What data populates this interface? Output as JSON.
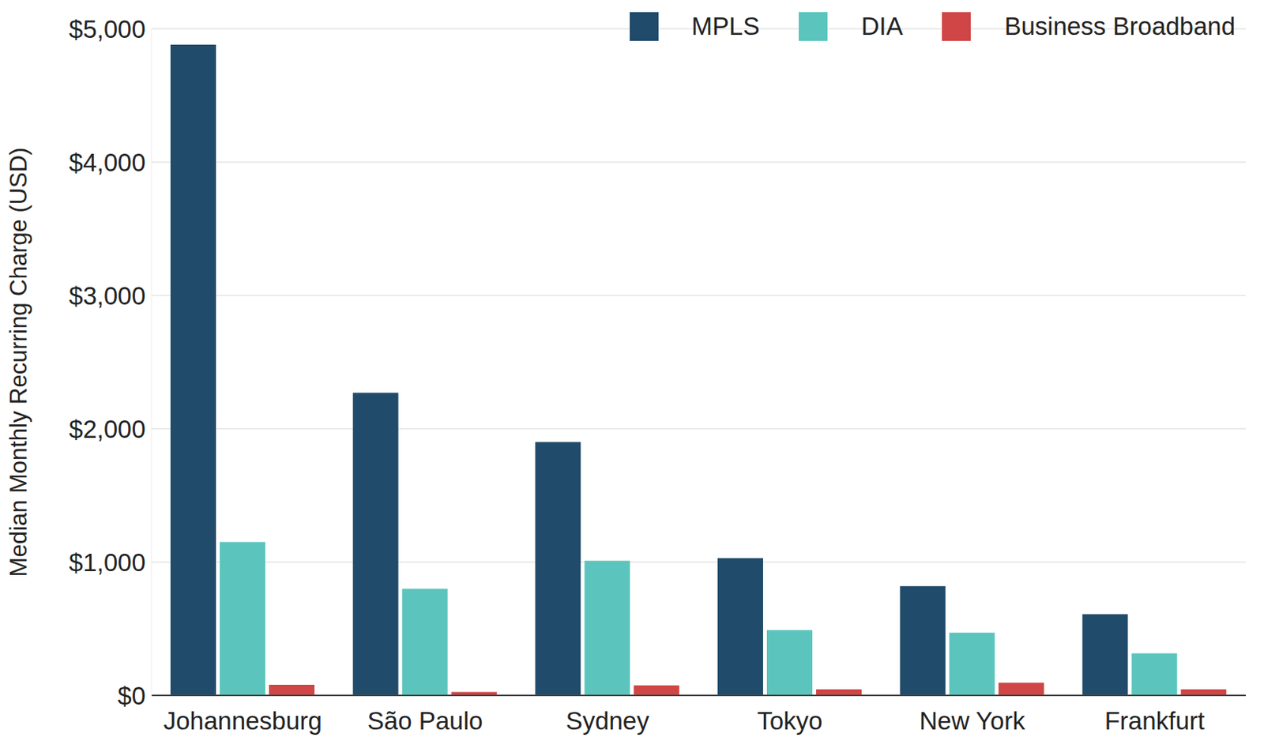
{
  "chart_data": {
    "type": "bar",
    "y_label": "Median Monthly Recurring Charge (USD)",
    "categories": [
      "Johannesburg",
      "São Paulo",
      "Sydney",
      "Tokyo",
      "New York",
      "Frankfurt"
    ],
    "series": [
      {
        "name": "MPLS",
        "color": "#214b6a",
        "values": [
          4880,
          2270,
          1900,
          1030,
          820,
          610
        ]
      },
      {
        "name": "DIA",
        "color": "#5bc5bd",
        "values": [
          1150,
          800,
          1010,
          490,
          470,
          315
        ]
      },
      {
        "name": "Business Broadband",
        "color": "#d04545",
        "values": [
          80,
          25,
          75,
          45,
          95,
          45
        ]
      }
    ],
    "ylim": [
      0,
      5000
    ],
    "yticks": [
      {
        "value": 0,
        "label": "$0"
      },
      {
        "value": 1000,
        "label": "$1,000"
      },
      {
        "value": 2000,
        "label": "$2,000"
      },
      {
        "value": 3000,
        "label": "$3,000"
      },
      {
        "value": 4000,
        "label": "$4,000"
      },
      {
        "value": 5000,
        "label": "$5,000"
      }
    ],
    "grid": true,
    "legend": "upper right"
  }
}
